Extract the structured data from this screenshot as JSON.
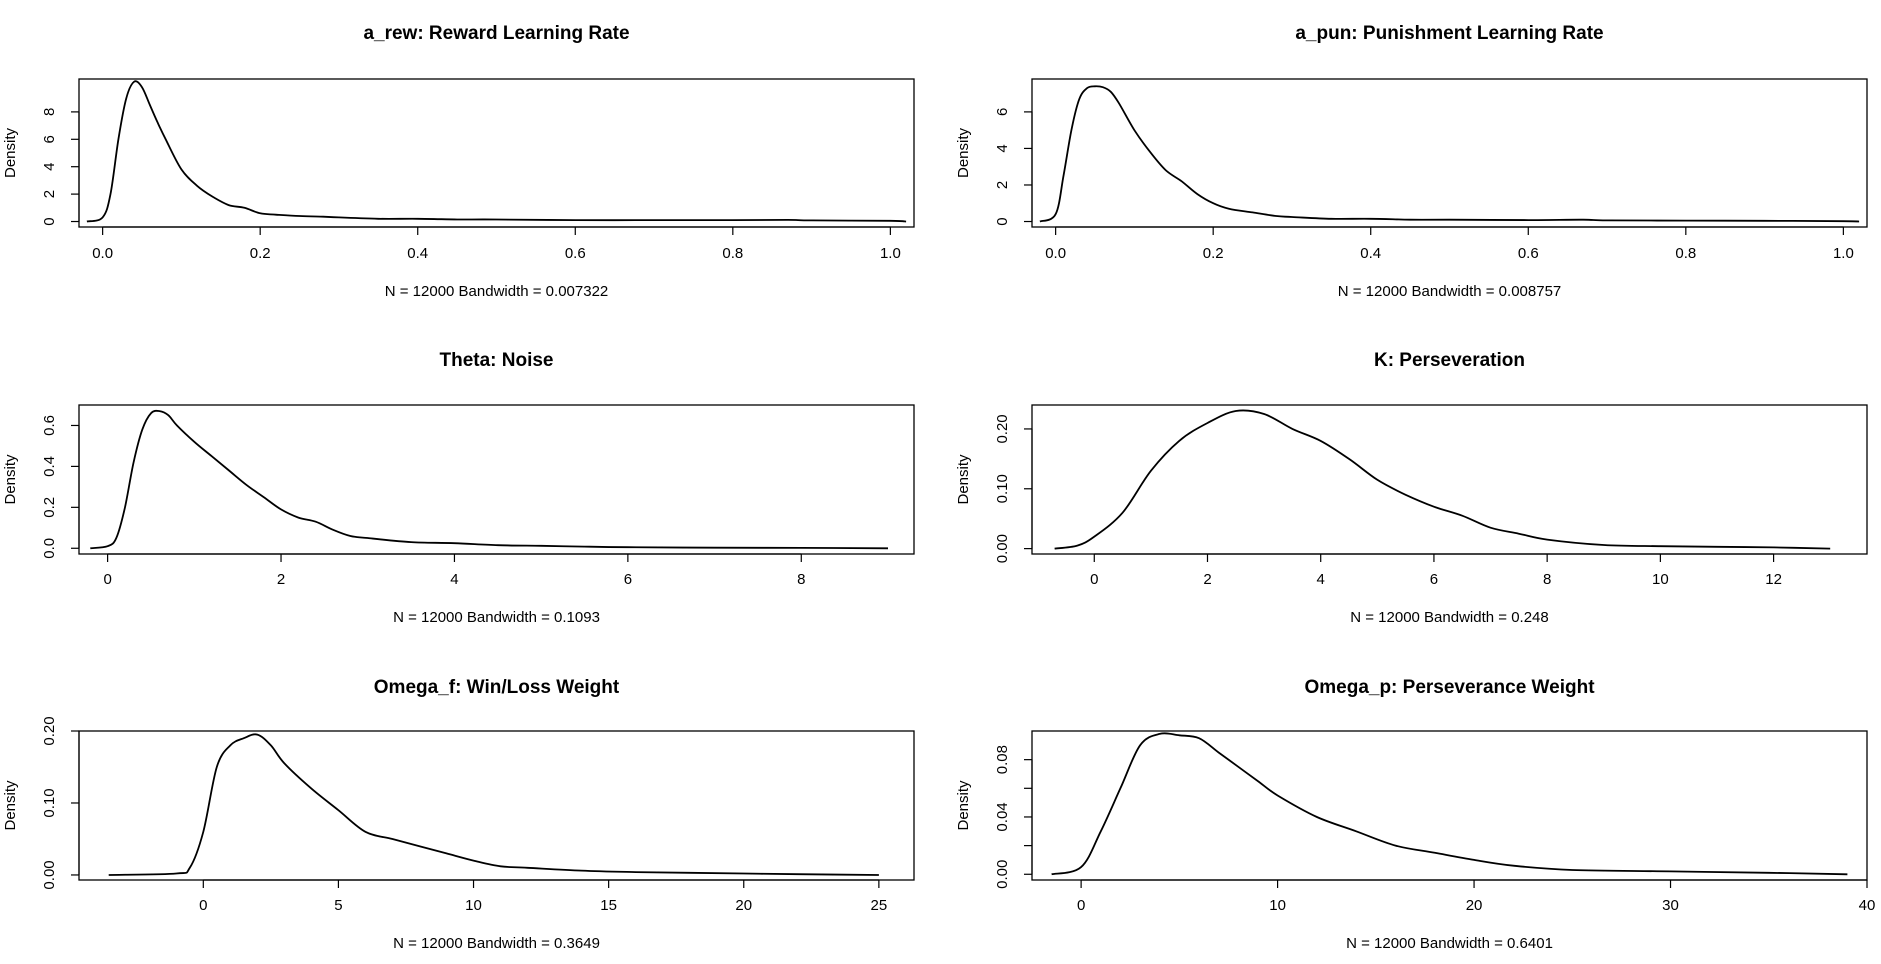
{
  "chart_data": [
    {
      "type": "line",
      "title": "a_rew: Reward Learning Rate",
      "ylabel": "Density",
      "xlabel": "N = 12000   Bandwidth = 0.007322",
      "xlim": [
        -0.03,
        1.03
      ],
      "ylim": [
        -0.4,
        10.4
      ],
      "xticks": [
        0.0,
        0.2,
        0.4,
        0.6,
        0.8,
        1.0
      ],
      "xtick_labels": [
        "0.0",
        "0.2",
        "0.4",
        "0.6",
        "0.8",
        "1.0"
      ],
      "yticks": [
        0,
        2,
        4,
        6,
        8
      ],
      "ytick_labels": [
        "0",
        "2",
        "4",
        "6",
        "8"
      ],
      "series": [
        {
          "x": [
            -0.02,
            0.0,
            0.01,
            0.02,
            0.03,
            0.04,
            0.05,
            0.06,
            0.07,
            0.08,
            0.1,
            0.12,
            0.14,
            0.16,
            0.18,
            0.2,
            0.22,
            0.25,
            0.28,
            0.3,
            0.35,
            0.4,
            0.45,
            0.5,
            0.6,
            0.7,
            0.8,
            0.87,
            0.9,
            1.0,
            1.02
          ],
          "y": [
            0.0,
            0.3,
            2.0,
            6.0,
            9.0,
            10.2,
            9.8,
            8.5,
            7.2,
            6.0,
            3.8,
            2.6,
            1.8,
            1.2,
            1.0,
            0.6,
            0.5,
            0.4,
            0.35,
            0.3,
            0.2,
            0.2,
            0.15,
            0.15,
            0.1,
            0.1,
            0.1,
            0.12,
            0.08,
            0.05,
            0.0
          ]
        }
      ]
    },
    {
      "type": "line",
      "title": "a_pun: Punishment Learning Rate",
      "ylabel": "Density",
      "xlabel": "N = 12000   Bandwidth = 0.008757",
      "xlim": [
        -0.03,
        1.03
      ],
      "ylim": [
        -0.3,
        7.8
      ],
      "xticks": [
        0.0,
        0.2,
        0.4,
        0.6,
        0.8,
        1.0
      ],
      "xtick_labels": [
        "0.0",
        "0.2",
        "0.4",
        "0.6",
        "0.8",
        "1.0"
      ],
      "yticks": [
        0,
        2,
        4,
        6
      ],
      "ytick_labels": [
        "0",
        "2",
        "4",
        "6"
      ],
      "series": [
        {
          "x": [
            -0.02,
            0.0,
            0.01,
            0.02,
            0.03,
            0.04,
            0.05,
            0.06,
            0.07,
            0.08,
            0.1,
            0.12,
            0.14,
            0.16,
            0.18,
            0.2,
            0.22,
            0.25,
            0.28,
            0.3,
            0.35,
            0.4,
            0.45,
            0.5,
            0.6,
            0.67,
            0.7,
            0.8,
            0.9,
            1.0,
            1.02
          ],
          "y": [
            0.0,
            0.4,
            2.5,
            5.0,
            6.7,
            7.3,
            7.4,
            7.35,
            7.1,
            6.5,
            5.0,
            3.8,
            2.8,
            2.2,
            1.5,
            1.0,
            0.7,
            0.5,
            0.3,
            0.25,
            0.15,
            0.15,
            0.1,
            0.1,
            0.08,
            0.1,
            0.06,
            0.05,
            0.04,
            0.02,
            0.0
          ]
        }
      ]
    },
    {
      "type": "line",
      "title": "Theta: Noise",
      "ylabel": "Density",
      "xlabel": "N = 12000   Bandwidth = 0.1093",
      "xlim": [
        -0.33,
        9.3
      ],
      "ylim": [
        -0.028,
        0.7
      ],
      "xticks": [
        0,
        2,
        4,
        6,
        8
      ],
      "xtick_labels": [
        "0",
        "2",
        "4",
        "6",
        "8"
      ],
      "yticks": [
        0.0,
        0.2,
        0.4,
        0.6
      ],
      "ytick_labels": [
        "0.0",
        "0.2",
        "0.4",
        "0.6"
      ],
      "series": [
        {
          "x": [
            -0.2,
            0.0,
            0.1,
            0.2,
            0.3,
            0.4,
            0.5,
            0.6,
            0.7,
            0.8,
            1.0,
            1.2,
            1.4,
            1.6,
            1.8,
            2.0,
            2.2,
            2.4,
            2.6,
            2.8,
            3.0,
            3.5,
            4.0,
            4.5,
            5.0,
            5.5,
            6.0,
            7.0,
            8.0,
            9.0
          ],
          "y": [
            0.0,
            0.01,
            0.05,
            0.2,
            0.42,
            0.58,
            0.66,
            0.67,
            0.65,
            0.6,
            0.52,
            0.45,
            0.38,
            0.31,
            0.25,
            0.19,
            0.15,
            0.13,
            0.09,
            0.06,
            0.05,
            0.03,
            0.025,
            0.015,
            0.012,
            0.008,
            0.005,
            0.003,
            0.002,
            0.0
          ]
        }
      ]
    },
    {
      "type": "line",
      "title": "K: Perseveration",
      "ylabel": "Density",
      "xlabel": "N = 12000   Bandwidth = 0.248",
      "xlim": [
        -1.1,
        13.65
      ],
      "ylim": [
        -0.009,
        0.24
      ],
      "xticks": [
        0,
        2,
        4,
        6,
        8,
        10,
        12
      ],
      "xtick_labels": [
        "0",
        "2",
        "4",
        "6",
        "8",
        "10",
        "12"
      ],
      "yticks": [
        0.0,
        0.1,
        0.2
      ],
      "ytick_labels": [
        "0.00",
        "0.10",
        "0.20"
      ],
      "series": [
        {
          "x": [
            -0.7,
            -0.3,
            0.0,
            0.5,
            1.0,
            1.5,
            2.0,
            2.5,
            3.0,
            3.5,
            4.0,
            4.5,
            5.0,
            5.5,
            6.0,
            6.5,
            7.0,
            7.5,
            8.0,
            9.0,
            10.0,
            11.0,
            12.0,
            13.0
          ],
          "y": [
            0.0,
            0.005,
            0.02,
            0.06,
            0.13,
            0.18,
            0.21,
            0.23,
            0.225,
            0.2,
            0.18,
            0.15,
            0.115,
            0.09,
            0.07,
            0.055,
            0.035,
            0.025,
            0.015,
            0.006,
            0.004,
            0.003,
            0.002,
            0.0
          ]
        }
      ]
    },
    {
      "type": "line",
      "title": "Omega_f: Win/Loss Weight",
      "ylabel": "Density",
      "xlabel": "N = 12000   Bandwidth = 0.3649",
      "xlim": [
        -4.6,
        26.3
      ],
      "ylim": [
        -0.007,
        0.2
      ],
      "xticks": [
        0,
        5,
        10,
        15,
        20,
        25
      ],
      "xtick_labels": [
        "0",
        "5",
        "10",
        "15",
        "20",
        "25"
      ],
      "yticks": [
        0.0,
        0.1,
        0.2
      ],
      "ytick_labels": [
        "0.00",
        "0.10",
        "0.20"
      ],
      "series": [
        {
          "x": [
            -3.5,
            -1.0,
            -0.5,
            0.0,
            0.5,
            1.0,
            1.5,
            2.0,
            2.5,
            3.0,
            4.0,
            5.0,
            6.0,
            7.0,
            8.0,
            9.0,
            10.0,
            11.0,
            12.0,
            14.0,
            16.0,
            18.0,
            20.0,
            22.0,
            25.0
          ],
          "y": [
            0.0,
            0.002,
            0.01,
            0.06,
            0.15,
            0.18,
            0.19,
            0.195,
            0.18,
            0.155,
            0.12,
            0.09,
            0.06,
            0.05,
            0.04,
            0.03,
            0.02,
            0.012,
            0.01,
            0.006,
            0.004,
            0.003,
            0.002,
            0.001,
            0.0
          ]
        }
      ]
    },
    {
      "type": "line",
      "title": "Omega_p: Perseverance Weight",
      "ylabel": "Density",
      "xlabel": "N = 12000   Bandwidth = 0.6401",
      "xlim": [
        -2.5,
        40.0
      ],
      "ylim": [
        -0.004,
        0.1
      ],
      "xticks": [
        0,
        10,
        20,
        30,
        40
      ],
      "xtick_labels": [
        "0",
        "10",
        "20",
        "30",
        "40"
      ],
      "yticks": [
        0.0,
        0.02,
        0.04,
        0.06,
        0.08
      ],
      "ytick_labels": [
        "0.00",
        "",
        "0.04",
        "",
        "0.08"
      ],
      "series": [
        {
          "x": [
            -1.5,
            0.0,
            1.0,
            2.0,
            3.0,
            4.0,
            5.0,
            6.0,
            7.0,
            8.0,
            9.0,
            10.0,
            12.0,
            14.0,
            16.0,
            18.0,
            20.0,
            22.0,
            25.0,
            30.0,
            35.0,
            39.0
          ],
          "y": [
            0.0,
            0.005,
            0.03,
            0.06,
            0.09,
            0.098,
            0.097,
            0.095,
            0.085,
            0.075,
            0.065,
            0.055,
            0.04,
            0.03,
            0.02,
            0.015,
            0.01,
            0.006,
            0.003,
            0.002,
            0.001,
            0.0
          ]
        }
      ]
    }
  ]
}
